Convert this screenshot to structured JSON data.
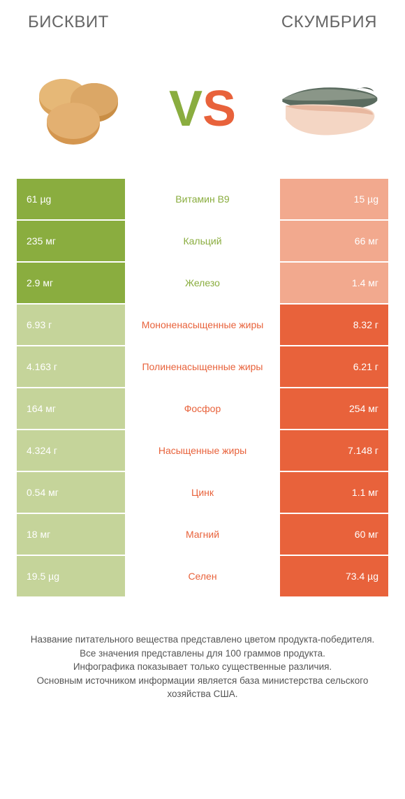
{
  "header": {
    "left_title": "БИСКВИТ",
    "right_title": "СКУМБРИЯ"
  },
  "vs": {
    "v": "V",
    "s": "S"
  },
  "colors": {
    "left_win": "#8aad3f",
    "left_lose": "#c5d49a",
    "right_win": "#e8623b",
    "right_lose": "#f2a98e",
    "background": "#ffffff"
  },
  "rows": [
    {
      "label": "Витамин B9",
      "left": "61 µg",
      "right": "15 µg",
      "winner": "left"
    },
    {
      "label": "Кальций",
      "left": "235 мг",
      "right": "66 мг",
      "winner": "left"
    },
    {
      "label": "Железо",
      "left": "2.9 мг",
      "right": "1.4 мг",
      "winner": "left"
    },
    {
      "label": "Мононенасыщенные жиры",
      "left": "6.93 г",
      "right": "8.32 г",
      "winner": "right"
    },
    {
      "label": "Полиненасыщенные жиры",
      "left": "4.163 г",
      "right": "6.21 г",
      "winner": "right"
    },
    {
      "label": "Фосфор",
      "left": "164 мг",
      "right": "254 мг",
      "winner": "right"
    },
    {
      "label": "Насыщенные жиры",
      "left": "4.324 г",
      "right": "7.148 г",
      "winner": "right"
    },
    {
      "label": "Цинк",
      "left": "0.54 мг",
      "right": "1.1 мг",
      "winner": "right"
    },
    {
      "label": "Магний",
      "left": "18 мг",
      "right": "60 мг",
      "winner": "right"
    },
    {
      "label": "Селен",
      "left": "19.5 µg",
      "right": "73.4 µg",
      "winner": "right"
    }
  ],
  "footer": {
    "line1": "Название питательного вещества представлено цветом продукта-победителя.",
    "line2": "Все значения представлены для 100 граммов продукта.",
    "line3": "Инфографика показывает только существенные различия.",
    "line4": "Основным источником информации является база министерства сельского хозяйства США."
  }
}
